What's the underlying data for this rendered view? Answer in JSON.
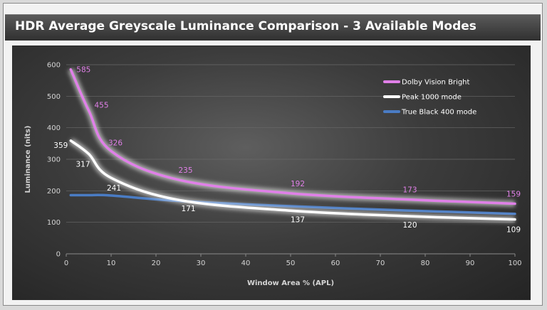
{
  "title": "HDR Average Greyscale Luminance Comparison - 3 Available Modes",
  "chart_data": {
    "type": "line",
    "title": "HDR Average Greyscale Luminance Comparison - 3 Available Modes",
    "xlabel": "Window Area % (APL)",
    "ylabel": "Luminance (nits)",
    "xlim": [
      0,
      100
    ],
    "ylim": [
      0,
      600
    ],
    "xticks": [
      0,
      10,
      20,
      30,
      40,
      50,
      60,
      70,
      80,
      90,
      100
    ],
    "yticks": [
      0,
      100,
      200,
      300,
      400,
      500,
      600
    ],
    "grid": true,
    "legend_position": "top-right",
    "series": [
      {
        "name": "Dolby Vision Bright",
        "color": "#e080e8",
        "x": [
          1,
          5,
          10,
          25,
          50,
          75,
          100
        ],
        "y": [
          585,
          455,
          326,
          235,
          192,
          173,
          159
        ],
        "labels": [
          "585",
          "455",
          "326",
          "235",
          "192",
          "173",
          "159"
        ]
      },
      {
        "name": "Peak 1000 mode",
        "color": "#ffffff",
        "x": [
          1,
          5,
          10,
          25,
          50,
          75,
          100
        ],
        "y": [
          359,
          317,
          241,
          171,
          137,
          120,
          109
        ],
        "labels": [
          "359",
          "317",
          "241",
          "171",
          "137",
          "120",
          "109"
        ]
      },
      {
        "name": "True Black 400 mode",
        "color": "#4a7cc4",
        "x": [
          1,
          5,
          10,
          25,
          50,
          75,
          100
        ],
        "y": [
          186,
          186,
          185,
          168,
          151,
          138,
          127
        ],
        "labels": []
      }
    ]
  }
}
